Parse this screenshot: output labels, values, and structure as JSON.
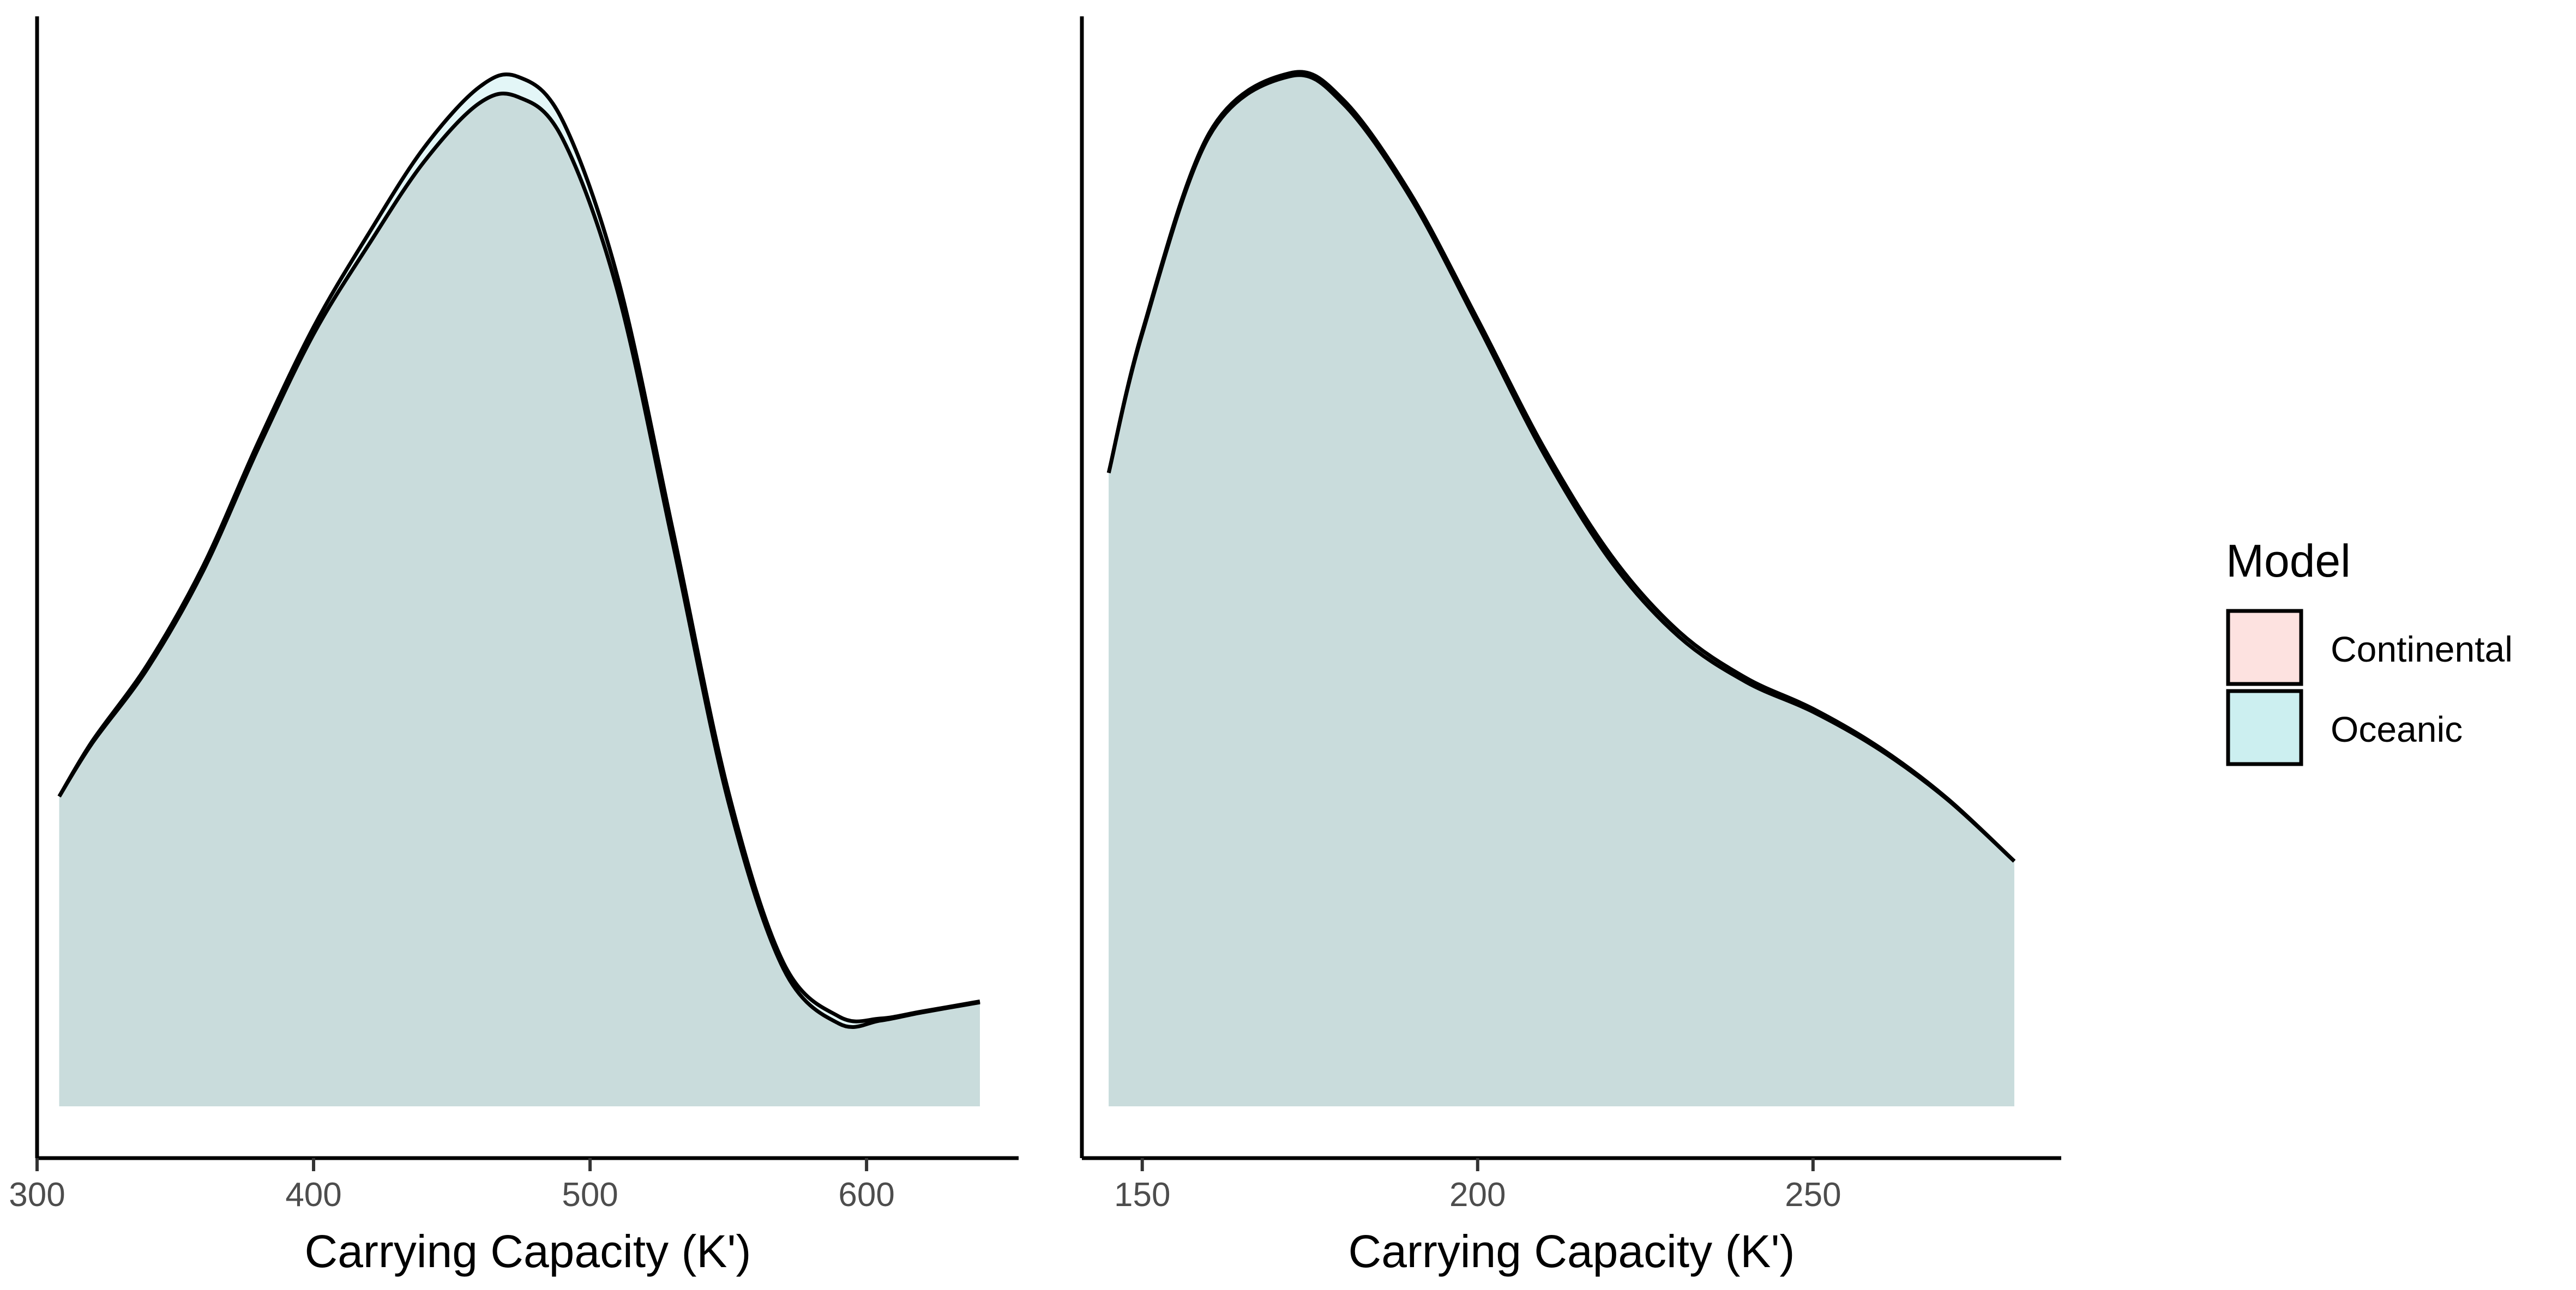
{
  "chart_data": [
    {
      "type": "area",
      "xlabel": "Carrying Capacity (K')",
      "ylabel": "",
      "xlim": [
        300,
        655
      ],
      "ylim": [
        0,
        1.0
      ],
      "x_ticks": [
        300,
        400,
        500,
        600
      ],
      "grid": false,
      "x": [
        308,
        320,
        340,
        360,
        380,
        400,
        420,
        440,
        460,
        474,
        490,
        510,
        530,
        550,
        570,
        590,
        605,
        620,
        641
      ],
      "series": [
        {
          "name": "Continental",
          "color": "#F8766D",
          "values": [
            0.307,
            0.36,
            0.434,
            0.53,
            0.652,
            0.765,
            0.854,
            0.936,
            0.994,
            1.0,
            0.959,
            0.807,
            0.557,
            0.302,
            0.136,
            0.082,
            0.085,
            0.093,
            0.103
          ]
        },
        {
          "name": "Oceanic",
          "color": "#00BFC4",
          "values": [
            0.307,
            0.362,
            0.438,
            0.535,
            0.658,
            0.772,
            0.865,
            0.95,
            1.01,
            1.02,
            0.977,
            0.821,
            0.57,
            0.312,
            0.142,
            0.089,
            0.087,
            0.094,
            0.104
          ]
        }
      ]
    },
    {
      "type": "area",
      "xlabel": "Carrying Capacity (K')",
      "ylabel": "",
      "xlim": [
        141,
        287
      ],
      "ylim": [
        0,
        1.0
      ],
      "x_ticks": [
        150,
        200,
        250
      ],
      "grid": false,
      "x": [
        145,
        150,
        160,
        172,
        180,
        190,
        200,
        210,
        220,
        230,
        240,
        250,
        260,
        270,
        280
      ],
      "series": [
        {
          "name": "Continental",
          "color": "#F8766D",
          "values": [
            0.615,
            0.75,
            0.942,
            1.0,
            0.973,
            0.882,
            0.759,
            0.632,
            0.528,
            0.456,
            0.412,
            0.383,
            0.346,
            0.298,
            0.238
          ]
        },
        {
          "name": "Oceanic",
          "color": "#00BFC4",
          "values": [
            0.615,
            0.752,
            0.945,
            1.003,
            0.977,
            0.886,
            0.764,
            0.638,
            0.534,
            0.461,
            0.416,
            0.386,
            0.348,
            0.299,
            0.238
          ]
        }
      ]
    }
  ],
  "legend": {
    "title": "Model",
    "position": "right",
    "entries": [
      {
        "label": "Continental",
        "color": "#F8766D"
      },
      {
        "label": "Oceanic",
        "color": "#00BFC4"
      }
    ]
  },
  "colors": {
    "overlap_fill": "#C9DCDC",
    "continental_key": "#FDE2E0",
    "oceanic_key": "#CCEFF0",
    "axis": "#000000"
  }
}
